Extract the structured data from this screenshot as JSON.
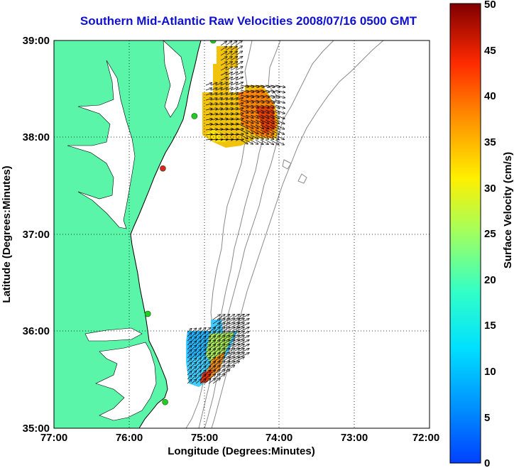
{
  "title": "Southern Mid-Atlantic Raw Velocities 2008/07/16 0500 GMT",
  "map": {
    "xlabel": "Longitude (Degrees:Minutes)",
    "ylabel": "Latitude (Degrees:Minutes)",
    "x_ticks": [
      "77:00",
      "76:00",
      "75:00",
      "74:00",
      "73:00",
      "72:00"
    ],
    "y_ticks": [
      "39:00",
      "38:00",
      "37:00",
      "36:00",
      "35:00"
    ],
    "lon_range": [
      -77,
      -72
    ],
    "lat_range": [
      35,
      39
    ],
    "grid": "dotted",
    "land_color": "#5af5a8",
    "coast_color": "#000000",
    "bathymetry_color": "#888888"
  },
  "colorbar": {
    "label": "Surface Velocity (cm/s)",
    "ticks": [
      "0",
      "5",
      "10",
      "15",
      "20",
      "25",
      "30",
      "35",
      "40",
      "45",
      "50"
    ],
    "range": [
      0,
      50
    ],
    "colormap": "jet"
  },
  "stations": [
    {
      "lon": -74.88,
      "lat": 39.0,
      "color": "#22cc22"
    },
    {
      "lon": -75.13,
      "lat": 38.22,
      "color": "#22cc22"
    },
    {
      "lon": -75.55,
      "lat": 37.68,
      "color": "#dd2222"
    },
    {
      "lon": -75.75,
      "lat": 36.18,
      "color": "#22cc22"
    },
    {
      "lon": -75.52,
      "lat": 35.27,
      "color": "#22cc22"
    }
  ]
}
